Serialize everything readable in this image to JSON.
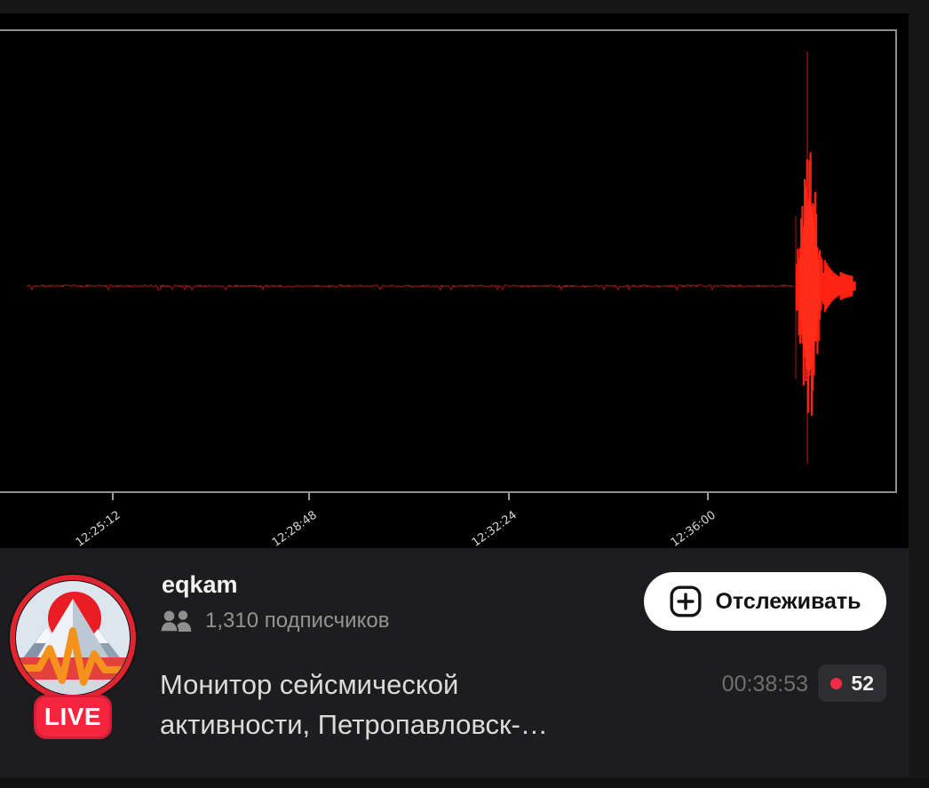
{
  "stream": {
    "channel": "eqkam",
    "subscribers": "1,310 подписчиков",
    "live_badge": "LIVE",
    "follow_button": "Отслеживать",
    "title": "Монитор сейсмической\nактивности, Петропавловск-…",
    "elapsed": "00:38:53",
    "viewers": "52"
  },
  "player": {
    "chart": {
      "x_ticks": [
        "12:25:12",
        "12:28:48",
        "12:32:24",
        "12:36:00"
      ]
    }
  },
  "chart_data": {
    "type": "line",
    "title": "",
    "xlabel": "",
    "ylabel": "",
    "x_ticks": [
      "12:25:12",
      "12:28:48",
      "12:32:24",
      "12:36:00"
    ],
    "x_tick_interval_seconds": 216,
    "grid": false,
    "background": "#000000",
    "series": [
      {
        "name": "seismic-trace",
        "description": "flat near-zero baseline with minor noise, then a single large transient burst near the right edge decaying quickly",
        "baseline_value": 0,
        "event_time_estimate": "12:37:50",
        "event_peak_relative_amplitude": 1.0,
        "post_event_tail_relative_amplitude": 0.06
      }
    ]
  },
  "colors": {
    "trace_bright": "#ff2213",
    "trace_dark": "#7c150c",
    "plot_frame": "#8f8f8f",
    "live_red": "#f5253f",
    "viewer_dot_red": "#f32b45",
    "follow_bg": "#ffffff",
    "info_bg": "#1d1d1f"
  },
  "icons": {
    "follow_plus": "plus-in-rounded-square",
    "subscribers": "two-people",
    "avatar": "mountains-sun-seismogram-logo"
  }
}
